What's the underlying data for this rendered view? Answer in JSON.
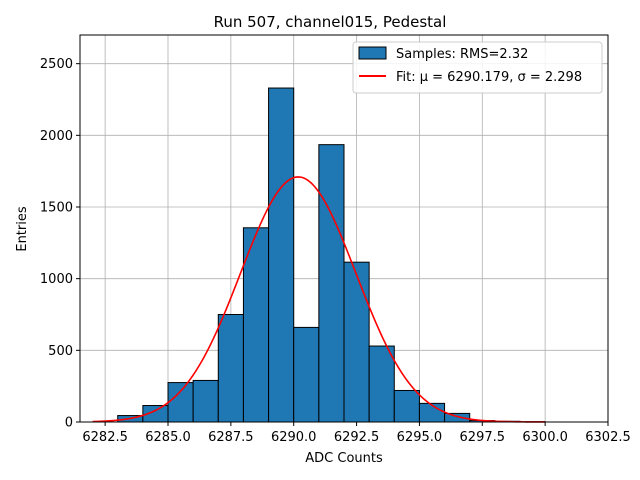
{
  "chart_data": {
    "type": "bar",
    "title": "Run 507, channel015, Pedestal",
    "xlabel": "ADC Counts",
    "ylabel": "Entries",
    "xlim": [
      6281.5,
      6302.5
    ],
    "ylim": [
      0,
      2700
    ],
    "xticks": [
      6282.5,
      6285.0,
      6287.5,
      6290.0,
      6292.5,
      6295.0,
      6297.5,
      6300.0,
      6302.5
    ],
    "xtick_labels": [
      "6282.5",
      "6285.0",
      "6287.5",
      "6290.0",
      "6292.5",
      "6295.0",
      "6297.5",
      "6300.0",
      "6302.5"
    ],
    "yticks": [
      0,
      500,
      1000,
      1500,
      2000,
      2500
    ],
    "ytick_labels": [
      "0",
      "500",
      "1000",
      "1500",
      "2000",
      "2500"
    ],
    "grid": true,
    "legend_position": "top-right",
    "bin_edges": [
      6283,
      6284,
      6285,
      6286,
      6287,
      6288,
      6289,
      6290,
      6291,
      6292,
      6293,
      6294,
      6295,
      6296,
      6297,
      6298,
      6299,
      6300
    ],
    "series": [
      {
        "name": "Samples: RMS=2.32",
        "kind": "histogram",
        "color": "#1f77b4",
        "values": [
          45,
          115,
          275,
          290,
          750,
          1355,
          2330,
          660,
          1935,
          1115,
          530,
          220,
          130,
          60,
          10,
          5,
          2
        ]
      },
      {
        "name": "Fit: μ = 6290.179, σ = 2.298",
        "kind": "gaussian",
        "color": "#ff0000",
        "mu": 6290.179,
        "sigma": 2.298,
        "amplitude": 1710,
        "x_range": [
          6282.0,
          6300.0
        ]
      }
    ]
  }
}
